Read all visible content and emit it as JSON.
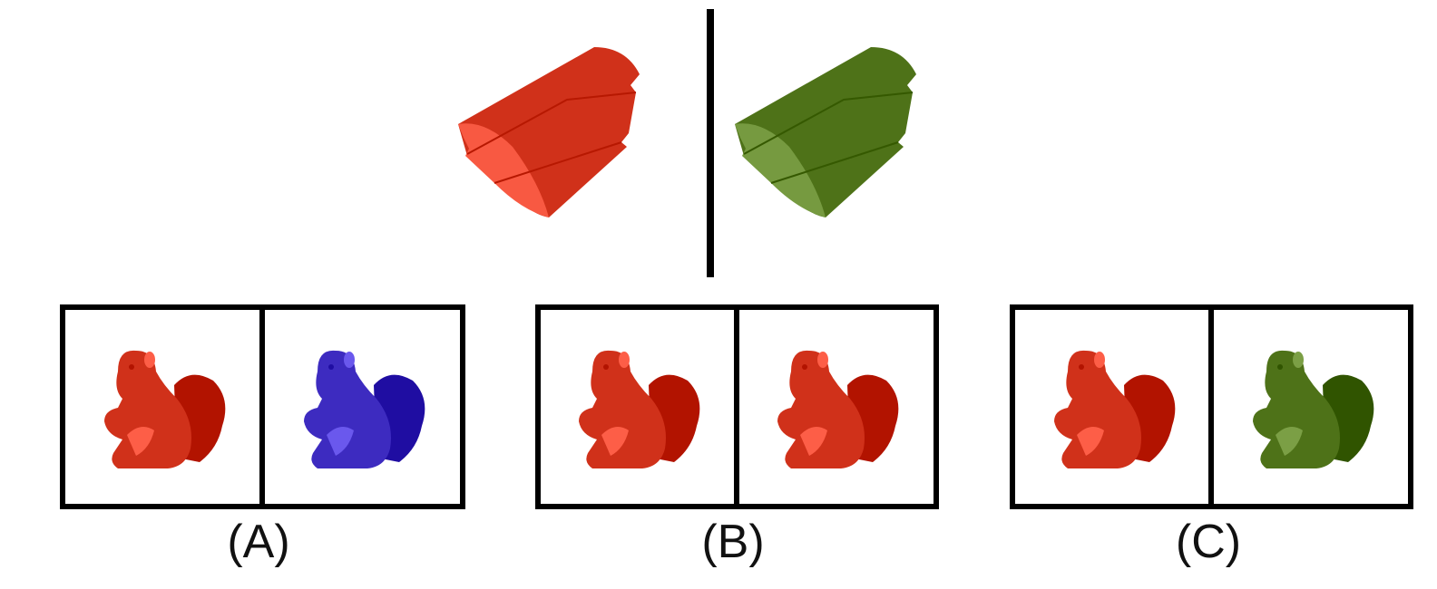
{
  "reference": {
    "left_object": {
      "name": "cylinder-block-icon",
      "color": "#d0311a"
    },
    "right_object": {
      "name": "cylinder-block-icon",
      "color": "#4e7218"
    }
  },
  "options": [
    {
      "label": "(A)",
      "left": {
        "name": "squirrel-icon",
        "color": "#d0311a"
      },
      "right": {
        "name": "squirrel-icon",
        "color": "#3d2bc0"
      }
    },
    {
      "label": "(B)",
      "left": {
        "name": "squirrel-icon",
        "color": "#d0311a"
      },
      "right": {
        "name": "squirrel-icon",
        "color": "#d0311a"
      }
    },
    {
      "label": "(C)",
      "left": {
        "name": "squirrel-icon",
        "color": "#d0311a"
      },
      "right": {
        "name": "squirrel-icon",
        "color": "#4e7218"
      }
    }
  ]
}
